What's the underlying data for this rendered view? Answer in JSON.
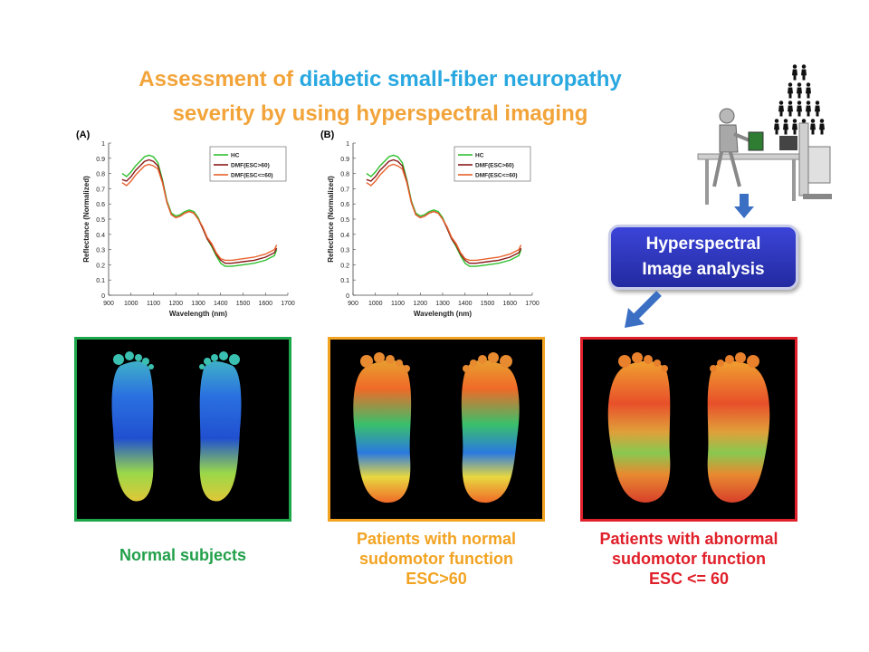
{
  "title": {
    "line1_part1": "Assessment of ",
    "line1_part2": "diabetic small-fiber neuropathy",
    "line2": "severity by using hyperspectral imaging"
  },
  "colors": {
    "orange": "#f2a43a",
    "blue": "#29a8e0",
    "hc": "#2fbf2f",
    "esc_gt60": "#8b1a1a",
    "esc_le60": "#e8622c",
    "box_green": "#1ea64a",
    "box_orange": "#f2a321",
    "box_red": "#e0202a"
  },
  "chart_data": [
    {
      "type": "line",
      "panel": "(A)",
      "xlabel": "Wavelength (nm)",
      "ylabel": "Reflectance (Normalized)",
      "xlim": [
        900,
        1700
      ],
      "ylim": [
        0,
        1
      ],
      "xticks": [
        900,
        1000,
        1100,
        1200,
        1300,
        1400,
        1500,
        1600,
        1700
      ],
      "yticks": [
        0,
        0.1,
        0.2,
        0.3,
        0.4,
        0.5,
        0.6,
        0.7,
        0.8,
        0.9,
        1
      ],
      "x": [
        960,
        980,
        1000,
        1020,
        1040,
        1060,
        1080,
        1100,
        1120,
        1140,
        1160,
        1180,
        1200,
        1220,
        1240,
        1260,
        1280,
        1300,
        1320,
        1340,
        1360,
        1380,
        1400,
        1420,
        1450,
        1500,
        1550,
        1600,
        1640,
        1650
      ],
      "series": [
        {
          "name": "HC",
          "values": [
            0.8,
            0.78,
            0.81,
            0.85,
            0.88,
            0.91,
            0.92,
            0.91,
            0.87,
            0.76,
            0.62,
            0.54,
            0.52,
            0.53,
            0.55,
            0.56,
            0.55,
            0.51,
            0.44,
            0.37,
            0.32,
            0.26,
            0.21,
            0.19,
            0.19,
            0.2,
            0.21,
            0.23,
            0.26,
            0.3
          ]
        },
        {
          "name": "DMF(ESC>60)",
          "values": [
            0.76,
            0.75,
            0.78,
            0.82,
            0.85,
            0.88,
            0.89,
            0.88,
            0.85,
            0.75,
            0.61,
            0.53,
            0.51,
            0.52,
            0.54,
            0.55,
            0.54,
            0.5,
            0.44,
            0.37,
            0.33,
            0.27,
            0.23,
            0.21,
            0.21,
            0.22,
            0.23,
            0.25,
            0.28,
            0.31
          ]
        },
        {
          "name": "DMF(ESC<=60)",
          "values": [
            0.74,
            0.72,
            0.75,
            0.79,
            0.82,
            0.85,
            0.86,
            0.85,
            0.83,
            0.74,
            0.61,
            0.53,
            0.51,
            0.52,
            0.54,
            0.55,
            0.54,
            0.5,
            0.45,
            0.38,
            0.34,
            0.28,
            0.24,
            0.23,
            0.23,
            0.24,
            0.25,
            0.27,
            0.3,
            0.33
          ]
        }
      ]
    },
    {
      "type": "line",
      "panel": "(B)",
      "xlabel": "Wavelength (nm)",
      "ylabel": "Reflectance (Normalized)",
      "xlim": [
        900,
        1700
      ],
      "ylim": [
        0,
        1
      ],
      "xticks": [
        900,
        1000,
        1100,
        1200,
        1300,
        1400,
        1500,
        1600,
        1700
      ],
      "yticks": [
        0,
        0.1,
        0.2,
        0.3,
        0.4,
        0.5,
        0.6,
        0.7,
        0.8,
        0.9,
        1
      ],
      "x": [
        960,
        980,
        1000,
        1020,
        1040,
        1060,
        1080,
        1100,
        1120,
        1140,
        1160,
        1180,
        1200,
        1220,
        1240,
        1260,
        1280,
        1300,
        1320,
        1340,
        1360,
        1380,
        1400,
        1420,
        1450,
        1500,
        1550,
        1600,
        1640,
        1650
      ],
      "series": [
        {
          "name": "HC",
          "values": [
            0.8,
            0.78,
            0.81,
            0.85,
            0.88,
            0.91,
            0.92,
            0.91,
            0.87,
            0.76,
            0.62,
            0.54,
            0.52,
            0.53,
            0.55,
            0.56,
            0.55,
            0.51,
            0.44,
            0.37,
            0.32,
            0.26,
            0.21,
            0.19,
            0.19,
            0.2,
            0.21,
            0.23,
            0.26,
            0.3
          ]
        },
        {
          "name": "DMF(ESC>60)",
          "values": [
            0.76,
            0.75,
            0.78,
            0.82,
            0.85,
            0.88,
            0.89,
            0.88,
            0.85,
            0.75,
            0.61,
            0.53,
            0.51,
            0.52,
            0.54,
            0.55,
            0.54,
            0.5,
            0.44,
            0.37,
            0.33,
            0.27,
            0.23,
            0.21,
            0.21,
            0.22,
            0.23,
            0.25,
            0.28,
            0.31
          ]
        },
        {
          "name": "DMF(ESC<=60)",
          "values": [
            0.74,
            0.72,
            0.75,
            0.79,
            0.82,
            0.85,
            0.86,
            0.85,
            0.83,
            0.74,
            0.61,
            0.53,
            0.51,
            0.52,
            0.54,
            0.55,
            0.54,
            0.5,
            0.45,
            0.38,
            0.34,
            0.28,
            0.24,
            0.23,
            0.23,
            0.24,
            0.25,
            0.27,
            0.3,
            0.33
          ]
        }
      ]
    }
  ],
  "analysis_box": {
    "line1": "Hyperspectral",
    "line2": "Image analysis"
  },
  "groups": [
    {
      "line1": "Normal subjects"
    },
    {
      "line1": "Patients with normal",
      "line2": "sudomotor function",
      "line3": "ESC>60"
    },
    {
      "line1": "Patients with abnormal",
      "line2": "sudomotor function",
      "line3": "ESC <= 60"
    }
  ]
}
